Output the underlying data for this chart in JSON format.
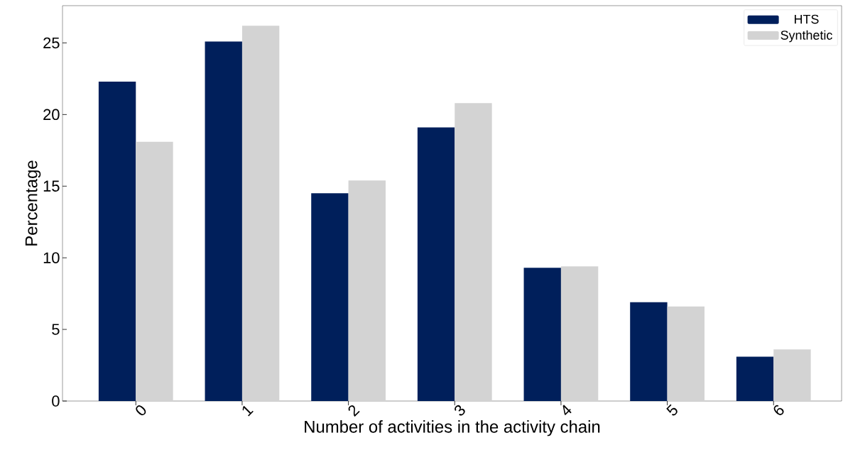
{
  "chart_data": {
    "type": "bar",
    "xlabel": "Number of activities in the activity chain",
    "ylabel": "Percentage",
    "categories": [
      "0",
      "1",
      "2",
      "3",
      "4",
      "5",
      "6"
    ],
    "series": [
      {
        "name": "HTS",
        "color": "#001f5b",
        "values": [
          22.3,
          25.1,
          14.5,
          19.1,
          9.3,
          6.9,
          3.1
        ]
      },
      {
        "name": "Synthetic",
        "color": "#d3d3d3",
        "values": [
          18.1,
          26.2,
          15.4,
          20.8,
          9.4,
          6.6,
          3.6
        ]
      }
    ],
    "ylim": [
      0,
      27.6
    ],
    "yticks": [
      0,
      5,
      10,
      15,
      20,
      25
    ],
    "grid": false,
    "legend": "top right"
  }
}
